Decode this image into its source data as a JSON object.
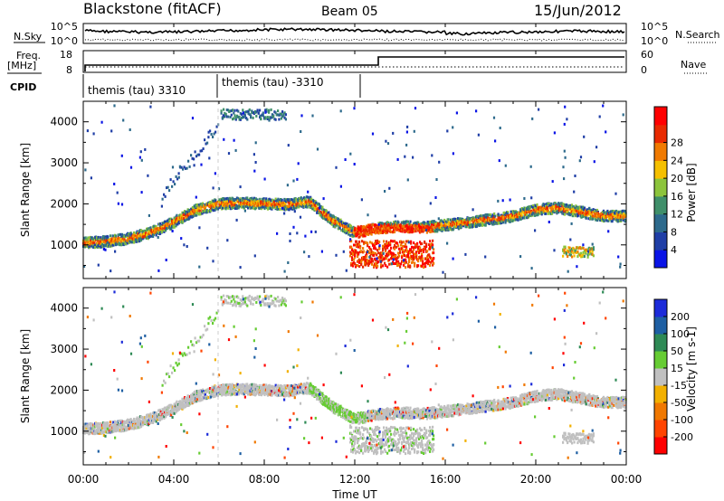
{
  "header": {
    "station": "Blackstone (fitACF)",
    "beam": "Beam 05",
    "date": "15/Jun/2012"
  },
  "left_labels": {
    "nsky": "N.Sky",
    "freq": "Freq.",
    "freq_unit": "[MHz]",
    "cpid": "CPID"
  },
  "right_labels": {
    "nsearch": "N.Search",
    "nave": "Nave"
  },
  "noise_axis": {
    "left_ticks": [
      "10^5",
      "10^0"
    ],
    "right_ticks": [
      "10^5",
      "10^0"
    ]
  },
  "freq_axis": {
    "left_ticks": [
      "18",
      "8"
    ],
    "right_ticks": [
      "60",
      "0"
    ]
  },
  "cpid_labels": [
    "themis (tau) 3310",
    "themis (tau) -3310"
  ],
  "x_axis": {
    "title": "Time UT",
    "ticks": [
      "00:00",
      "04:00",
      "08:00",
      "12:00",
      "16:00",
      "20:00",
      "00:00"
    ]
  },
  "colors": {
    "power": [
      "#0a14e6",
      "#1f3ea6",
      "#2d6a8c",
      "#3f8f6a",
      "#8cc43c",
      "#f5c000",
      "#f07a00",
      "#e82a00",
      "#ff0000"
    ],
    "velocity": [
      "#1c2bd9",
      "#1e5fa3",
      "#2e8a55",
      "#66cc33",
      "#c0c0c0",
      "#f2b000",
      "#f07800",
      "#ff4400",
      "#ff0000"
    ]
  },
  "chart_data": [
    {
      "type": "heatmap",
      "name": "power",
      "xlabel": "Time UT",
      "ylabel": "Slant Range [km]",
      "xlim": [
        0,
        24
      ],
      "ylim": [
        180,
        4500
      ],
      "y_ticks": [
        1000,
        2000,
        3000,
        4000
      ],
      "colorbar": {
        "label": "Power [dB]",
        "ticks": [
          4,
          8,
          12,
          16,
          20,
          24,
          28
        ]
      },
      "scatter_bands": [
        {
          "t": [
            0,
            1,
            2,
            3,
            4,
            5,
            6,
            7,
            8,
            9,
            10,
            11,
            12,
            13,
            14,
            15,
            16,
            17,
            18,
            19,
            20,
            21,
            22,
            23,
            24
          ],
          "range": [
            1050,
            1080,
            1150,
            1300,
            1550,
            1850,
            2000,
            2020,
            2000,
            1980,
            2050,
            1600,
            1300,
            1400,
            1450,
            1420,
            1480,
            1550,
            1620,
            1700,
            1850,
            1900,
            1800,
            1700,
            1700
          ]
        }
      ]
    },
    {
      "type": "heatmap",
      "name": "velocity",
      "xlabel": "Time UT",
      "ylabel": "Slant Range [km]",
      "xlim": [
        0,
        24
      ],
      "ylim": [
        180,
        4500
      ],
      "y_ticks": [
        1000,
        2000,
        3000,
        4000
      ],
      "colorbar": {
        "label": "Velocity [m s-1]",
        "ticks": [
          200,
          100,
          50,
          15,
          -15,
          -50,
          -100,
          -200
        ]
      }
    }
  ]
}
